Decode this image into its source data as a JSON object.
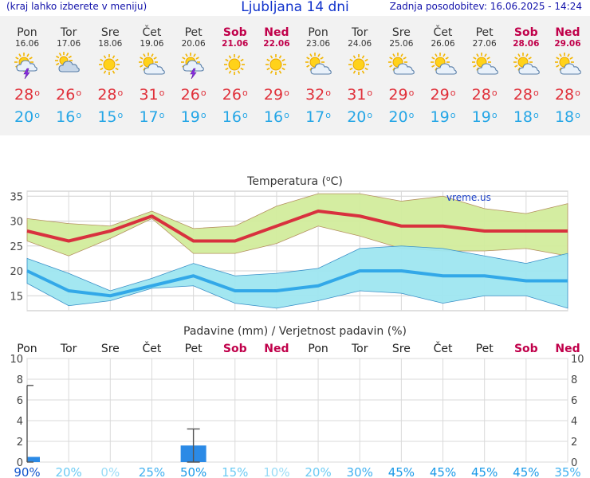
{
  "header": {
    "menu_hint": "(kraj lahko izberete v meniju)",
    "title": "Ljubljana 14 dni",
    "updated": "Zadnja posodobitev: 16.06.2025 - 14:24"
  },
  "forecast": [
    {
      "day": "Pon",
      "date": "16.06",
      "icon": "sun-cloud-thunder-icon",
      "tmax": "28",
      "tmin": "20",
      "weekend": false
    },
    {
      "day": "Tor",
      "date": "17.06",
      "icon": "cloudy-sun-icon",
      "tmax": "26",
      "tmin": "16",
      "weekend": false
    },
    {
      "day": "Sre",
      "date": "18.06",
      "icon": "sun-icon",
      "tmax": "28",
      "tmin": "15",
      "weekend": false
    },
    {
      "day": "Čet",
      "date": "19.06",
      "icon": "sun-cloud-icon",
      "tmax": "31",
      "tmin": "17",
      "weekend": false
    },
    {
      "day": "Pet",
      "date": "20.06",
      "icon": "sun-cloud-thunder-icon",
      "tmax": "26",
      "tmin": "19",
      "weekend": false
    },
    {
      "day": "Sob",
      "date": "21.06",
      "icon": "sun-icon",
      "tmax": "26",
      "tmin": "16",
      "weekend": true
    },
    {
      "day": "Ned",
      "date": "22.06",
      "icon": "sun-icon",
      "tmax": "29",
      "tmin": "16",
      "weekend": true
    },
    {
      "day": "Pon",
      "date": "23.06",
      "icon": "sun-cloud-icon",
      "tmax": "32",
      "tmin": "17",
      "weekend": false
    },
    {
      "day": "Tor",
      "date": "24.06",
      "icon": "sun-icon",
      "tmax": "31",
      "tmin": "20",
      "weekend": false
    },
    {
      "day": "Sre",
      "date": "25.06",
      "icon": "sun-cloud-icon",
      "tmax": "29",
      "tmin": "20",
      "weekend": false
    },
    {
      "day": "Čet",
      "date": "26.06",
      "icon": "sun-cloud-icon",
      "tmax": "29",
      "tmin": "19",
      "weekend": false
    },
    {
      "day": "Pet",
      "date": "27.06",
      "icon": "sun-cloud-icon",
      "tmax": "28",
      "tmin": "19",
      "weekend": false
    },
    {
      "day": "Sob",
      "date": "28.06",
      "icon": "sun-cloud-icon",
      "tmax": "28",
      "tmin": "18",
      "weekend": true
    },
    {
      "day": "Ned",
      "date": "29.06",
      "icon": "sun-cloud-icon",
      "tmax": "28",
      "tmin": "18",
      "weekend": true
    }
  ],
  "colors": {
    "weekend": "#c0004a",
    "tmax_line": "#d8313e",
    "tmin_line": "#32a8e8",
    "tmax_band": "#d2ec9c",
    "tmin_band": "#9ee6f0",
    "precip_bar": "#2b8ae6"
  },
  "chart_data": [
    {
      "type": "line",
      "title": "Temperatura (°C)",
      "watermark": "vreme.us",
      "categories": [
        "Pon",
        "Tor",
        "Sre",
        "Čet",
        "Pet",
        "Sob",
        "Ned",
        "Pon",
        "Tor",
        "Sre",
        "Čet",
        "Pet",
        "Sob",
        "Ned"
      ],
      "ylim": [
        12,
        36
      ],
      "yticks": [
        15,
        20,
        25,
        30,
        35
      ],
      "grid": true,
      "series": [
        {
          "values": [
            28,
            26,
            28,
            31,
            26,
            26,
            29,
            32,
            31,
            29,
            29,
            28,
            28,
            28
          ],
          "band_high": [
            30.5,
            29.5,
            29,
            32,
            28.5,
            29,
            33,
            35.5,
            35.5,
            34,
            35,
            32.5,
            31.5,
            33.5
          ],
          "band_low": [
            26,
            23,
            26.5,
            30.5,
            23.5,
            23.5,
            25.5,
            29,
            27,
            24.5,
            24,
            24,
            24.5,
            23
          ]
        },
        {
          "values": [
            20,
            16,
            15,
            17,
            19,
            16,
            16,
            17,
            20,
            20,
            19,
            19,
            18,
            18
          ],
          "band_high": [
            22.5,
            19.5,
            16,
            18.5,
            21.5,
            19,
            19.5,
            20.5,
            24.5,
            25,
            24.5,
            23,
            21.5,
            23.5
          ],
          "band_low": [
            17.5,
            13,
            14,
            16.5,
            17,
            13.5,
            12.5,
            14,
            16,
            15.5,
            13.5,
            15,
            15,
            12.5
          ]
        }
      ]
    },
    {
      "type": "bar",
      "title": "Padavine (mm) / Verjetnost padavin (%)",
      "categories": [
        "Pon",
        "Tor",
        "Sre",
        "Čet",
        "Pet",
        "Sob",
        "Ned",
        "Pon",
        "Tor",
        "Sre",
        "Čet",
        "Pet",
        "Sob",
        "Ned"
      ],
      "ylim": [
        0,
        10
      ],
      "yticks": [
        0,
        2,
        4,
        6,
        8,
        10
      ],
      "grid": true,
      "values": [
        0.5,
        0,
        0,
        0,
        1.6,
        0,
        0,
        0,
        0,
        0,
        0,
        0,
        0,
        0
      ],
      "error_high": [
        7.4,
        null,
        null,
        null,
        3.2,
        null,
        null,
        null,
        null,
        null,
        null,
        null,
        null,
        null
      ],
      "probability": [
        "90%",
        "20%",
        "0%",
        "25%",
        "50%",
        "15%",
        "10%",
        "20%",
        "30%",
        "45%",
        "45%",
        "45%",
        "45%",
        "35%"
      ]
    }
  ]
}
